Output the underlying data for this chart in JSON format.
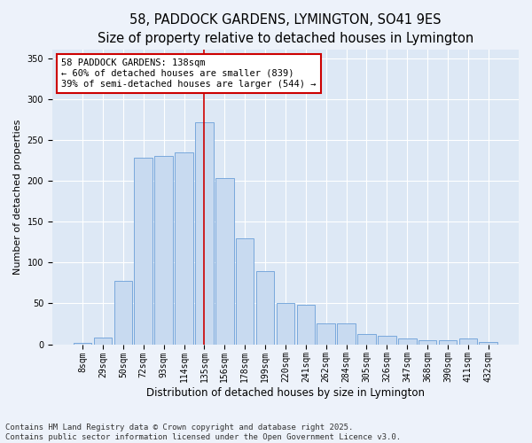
{
  "title": "58, PADDOCK GARDENS, LYMINGTON, SO41 9ES",
  "subtitle": "Size of property relative to detached houses in Lymington",
  "xlabel": "Distribution of detached houses by size in Lymington",
  "ylabel": "Number of detached properties",
  "categories": [
    "8sqm",
    "29sqm",
    "50sqm",
    "72sqm",
    "93sqm",
    "114sqm",
    "135sqm",
    "156sqm",
    "178sqm",
    "199sqm",
    "220sqm",
    "241sqm",
    "262sqm",
    "284sqm",
    "305sqm",
    "326sqm",
    "347sqm",
    "368sqm",
    "390sqm",
    "411sqm",
    "432sqm"
  ],
  "values": [
    2,
    8,
    78,
    228,
    230,
    235,
    272,
    203,
    130,
    90,
    50,
    48,
    25,
    25,
    12,
    10,
    7,
    5,
    5,
    7,
    3
  ],
  "bar_color": "#c8daf0",
  "bar_edge_color": "#6a9fd8",
  "vertical_line_index": 6,
  "vertical_line_color": "#cc0000",
  "annotation_line1": "58 PADDOCK GARDENS: 138sqm",
  "annotation_line2": "← 60% of detached houses are smaller (839)",
  "annotation_line3": "39% of semi-detached houses are larger (544) →",
  "annotation_box_color": "#ffffff",
  "annotation_box_edge_color": "#cc0000",
  "annotation_fontsize": 7.5,
  "title_fontsize": 10.5,
  "subtitle_fontsize": 9.5,
  "xlabel_fontsize": 8.5,
  "ylabel_fontsize": 8,
  "tick_fontsize": 7,
  "footer_text": "Contains HM Land Registry data © Crown copyright and database right 2025.\nContains public sector information licensed under the Open Government Licence v3.0.",
  "footer_fontsize": 6.5,
  "ylim": [
    0,
    360
  ],
  "bg_color": "#edf2fa",
  "grid_color": "#ffffff",
  "axes_bg_color": "#dde8f5"
}
